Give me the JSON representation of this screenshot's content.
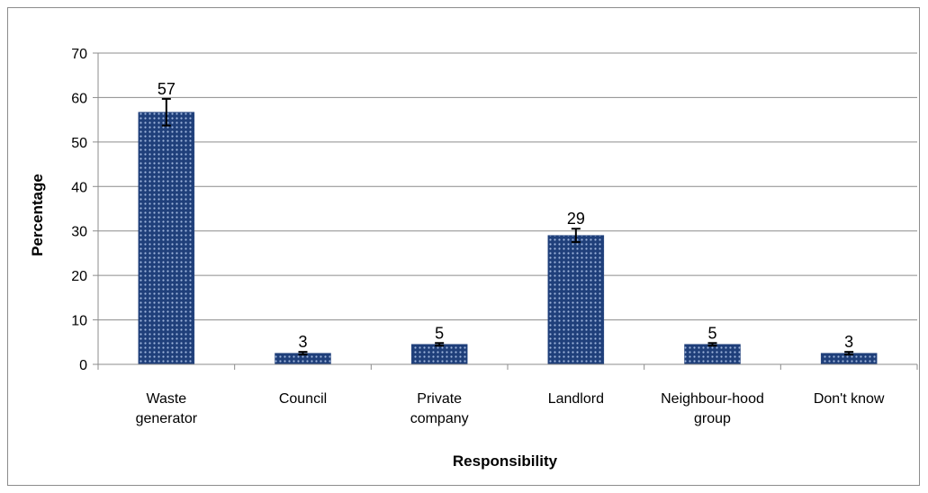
{
  "chart_data": {
    "type": "bar",
    "title": "",
    "xlabel": "Responsibility",
    "ylabel": "Percentage",
    "ylim": [
      0,
      70
    ],
    "yticks": [
      0,
      10,
      20,
      30,
      40,
      50,
      60,
      70
    ],
    "grid": true,
    "legend": "none",
    "categories": [
      [
        "Waste",
        "generator"
      ],
      [
        "Council"
      ],
      [
        "Private",
        "company"
      ],
      [
        "Landlord"
      ],
      [
        "Neighbour-hood",
        "group"
      ],
      [
        "Don't know"
      ]
    ],
    "values": [
      56.7,
      2.5,
      4.5,
      29.0,
      4.5,
      2.5
    ],
    "data_labels": [
      "57",
      "3",
      "5",
      "29",
      "5",
      "3"
    ],
    "error": [
      3.0,
      0.3,
      0.3,
      1.5,
      0.3,
      0.3
    ],
    "bar_color": "#1f3f7a",
    "dot_color": "#9fb6dd"
  }
}
